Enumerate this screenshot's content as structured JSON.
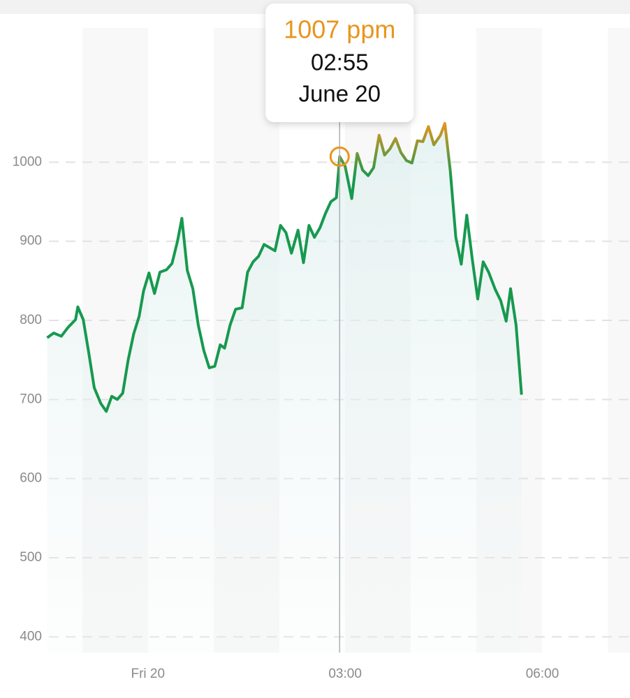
{
  "chart_data": {
    "type": "line",
    "color": "#17994f",
    "highlight_color": "#e8961e",
    "x": [
      "22:28",
      "22:34",
      "22:41",
      "22:47",
      "22:54",
      "22:56",
      "23:01",
      "23:06",
      "23:11",
      "23:17",
      "23:22",
      "23:27",
      "23:32",
      "23:37",
      "23:42",
      "23:47",
      "23:52",
      "23:56",
      "00:01",
      "00:06",
      "00:11",
      "00:17",
      "00:22",
      "00:27",
      "00:31",
      "00:36",
      "00:41",
      "00:46",
      "00:51",
      "00:56",
      "01:01",
      "01:06",
      "01:10",
      "01:15",
      "01:20",
      "01:26",
      "01:31",
      "01:36",
      "01:41",
      "01:46",
      "01:51",
      "01:56",
      "02:01",
      "02:06",
      "02:11",
      "02:17",
      "02:22",
      "02:27",
      "02:32",
      "02:37",
      "02:42",
      "02:47",
      "02:52",
      "02:55",
      "03:00",
      "03:06",
      "03:11",
      "03:16",
      "03:21",
      "03:26",
      "03:31",
      "03:36",
      "03:41",
      "03:46",
      "03:51",
      "03:56",
      "04:01",
      "04:06",
      "04:11",
      "04:16",
      "04:21",
      "04:27",
      "04:31",
      "04:36",
      "04:41",
      "04:46",
      "04:51",
      "04:56",
      "05:01",
      "05:06",
      "05:11",
      "05:17",
      "05:22",
      "05:27",
      "05:31",
      "05:36",
      "05:41"
    ],
    "values": [
      778,
      784,
      780,
      791,
      801,
      817,
      801,
      759,
      715,
      695,
      685,
      704,
      700,
      708,
      750,
      783,
      805,
      837,
      860,
      834,
      861,
      864,
      872,
      900,
      929,
      863,
      840,
      794,
      762,
      740,
      742,
      769,
      765,
      794,
      814,
      816,
      861,
      874,
      881,
      896,
      892,
      888,
      920,
      911,
      885,
      914,
      873,
      920,
      905,
      917,
      935,
      950,
      955,
      1007,
      995,
      954,
      1011,
      990,
      983,
      993,
      1034,
      1009,
      1017,
      1030,
      1012,
      1002,
      999,
      1027,
      1026,
      1045,
      1022,
      1034,
      1049,
      989,
      905,
      871,
      933,
      878,
      827,
      874,
      861,
      839,
      825,
      799,
      840,
      794,
      706
    ],
    "xlim": [
      "21:45",
      "07:20"
    ],
    "xticks": [
      {
        "value": "00:00",
        "label": "Fri 20"
      },
      "03:00",
      "06:00"
    ],
    "ylim": [
      380,
      1205
    ],
    "yticks": [
      400,
      500,
      600,
      700,
      800,
      900,
      1000
    ],
    "grid": true,
    "tooltip": {
      "x": "02:55",
      "value": 1007,
      "label": "1007 ppm",
      "date": "June 20"
    }
  }
}
